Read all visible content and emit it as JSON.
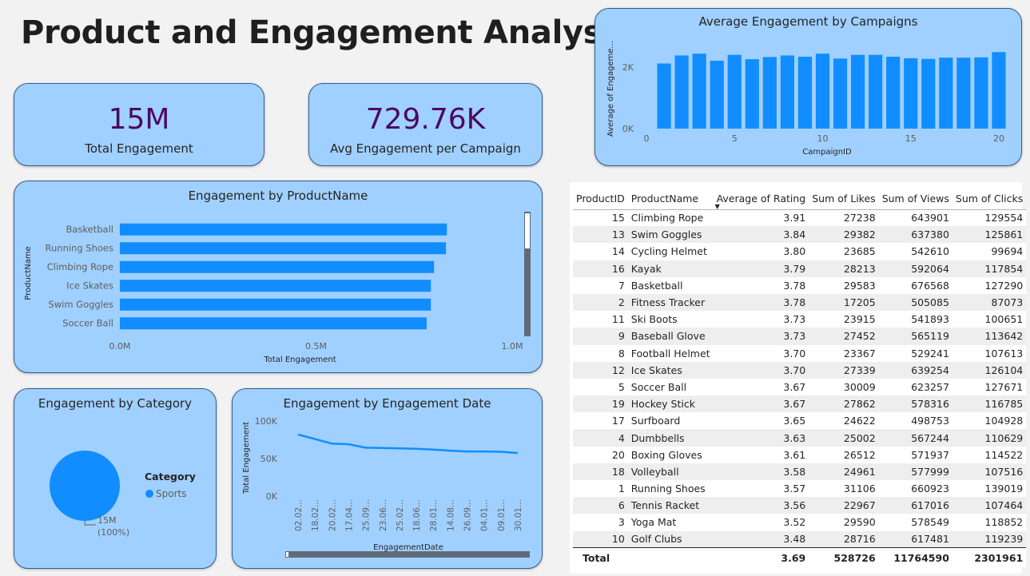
{
  "page": {
    "title": "Product and Engagement Analysis"
  },
  "kpis": [
    {
      "value": "15M",
      "label": "Total Engagement"
    },
    {
      "value": "729.76K",
      "label": "Avg Engagement per Campaign"
    }
  ],
  "colors": {
    "bar": "#118dff",
    "card_bg": "#a0d0ff",
    "kpi_value": "#4b0a5c",
    "scrollbar": "#606b7a"
  },
  "campaign_chart": {
    "title": "Average Engagement by Campaigns",
    "xlabel": "CampaignID",
    "ylabel": "Average of Engageme...",
    "y_ticks": [
      "2K",
      "0K"
    ],
    "x_ticks": [
      "0",
      "5",
      "10",
      "15",
      "20"
    ]
  },
  "product_chart": {
    "title": "Engagement by ProductName",
    "xlabel": "Total Engagement",
    "ylabel": "ProductName",
    "x_ticks": [
      "0.0M",
      "0.5M",
      "1.0M"
    ]
  },
  "category_chart": {
    "title": "Engagement by Category",
    "legend_title": "Category",
    "legend_item": "Sports",
    "slice_label_value": "15M",
    "slice_label_pct": "(100%)"
  },
  "date_chart": {
    "title": "Engagement by Engagement Date",
    "xlabel": "EngagementDate",
    "ylabel": "Total Engagement",
    "y_ticks": [
      "100K",
      "50K",
      "0K"
    ],
    "x_ticks": [
      "02.02...",
      "18.02...",
      "20.02...",
      "17.04...",
      "25.09...",
      "23.06...",
      "25.02...",
      "18.06...",
      "28.01...",
      "14.08...",
      "26.09...",
      "04.01...",
      "09.01...",
      "30.01..."
    ]
  },
  "chart_data": [
    {
      "type": "bar",
      "title": "Average Engagement by Campaigns",
      "xlabel": "CampaignID",
      "ylabel": "Average of Engageme...",
      "x": [
        1,
        2,
        3,
        4,
        5,
        6,
        7,
        8,
        9,
        10,
        11,
        12,
        13,
        14,
        15,
        16,
        17,
        18,
        19,
        20
      ],
      "values": [
        2120,
        2380,
        2440,
        2210,
        2400,
        2260,
        2330,
        2380,
        2340,
        2440,
        2280,
        2400,
        2400,
        2340,
        2290,
        2270,
        2310,
        2310,
        2320,
        2490
      ],
      "ylim": [
        0,
        2600
      ],
      "xlim": [
        0,
        20.5
      ]
    },
    {
      "type": "bar",
      "orientation": "horizontal",
      "title": "Engagement by ProductName",
      "xlabel": "Total Engagement",
      "ylabel": "ProductName",
      "categories": [
        "Basketball",
        "Running Shoes",
        "Climbing Rope",
        "Ice Skates",
        "Swim Goggles",
        "Soccer Ball"
      ],
      "values": [
        833441,
        831048,
        800693,
        792697,
        792623,
        781957
      ],
      "xlim": [
        0,
        1000000
      ]
    },
    {
      "type": "pie",
      "title": "Engagement by Category",
      "categories": [
        "Sports"
      ],
      "values": [
        15000000
      ],
      "labels": [
        "15M (100%)"
      ]
    },
    {
      "type": "line",
      "title": "Engagement by Engagement Date",
      "xlabel": "EngagementDate",
      "ylabel": "Total Engagement",
      "values": [
        82000,
        76000,
        70000,
        69000,
        64500,
        64000,
        63500,
        63000,
        62000,
        60500,
        59500,
        59500,
        59000,
        57500
      ],
      "ylim": [
        0,
        100000
      ]
    }
  ],
  "table": {
    "columns": [
      "ProductID",
      "ProductName",
      "Average of Rating",
      "Sum of Likes",
      "Sum of Views",
      "Sum of Clicks"
    ],
    "rows": [
      [
        "15",
        "Climbing Rope",
        "3.91",
        "27238",
        "643901",
        "129554"
      ],
      [
        "13",
        "Swim Goggles",
        "3.84",
        "29382",
        "637380",
        "125861"
      ],
      [
        "14",
        "Cycling Helmet",
        "3.80",
        "23685",
        "542610",
        "99694"
      ],
      [
        "16",
        "Kayak",
        "3.79",
        "28213",
        "592064",
        "117854"
      ],
      [
        "7",
        "Basketball",
        "3.78",
        "29583",
        "676568",
        "127290"
      ],
      [
        "2",
        "Fitness Tracker",
        "3.78",
        "17205",
        "505085",
        "87073"
      ],
      [
        "11",
        "Ski Boots",
        "3.73",
        "23915",
        "541893",
        "100651"
      ],
      [
        "9",
        "Baseball Glove",
        "3.73",
        "27452",
        "565119",
        "113642"
      ],
      [
        "8",
        "Football Helmet",
        "3.70",
        "23367",
        "529241",
        "107613"
      ],
      [
        "12",
        "Ice Skates",
        "3.70",
        "27339",
        "639254",
        "126104"
      ],
      [
        "5",
        "Soccer Ball",
        "3.67",
        "30009",
        "623257",
        "127671"
      ],
      [
        "19",
        "Hockey Stick",
        "3.67",
        "27862",
        "578316",
        "116785"
      ],
      [
        "17",
        "Surfboard",
        "3.65",
        "24622",
        "498753",
        "104928"
      ],
      [
        "4",
        "Dumbbells",
        "3.63",
        "25002",
        "567244",
        "110629"
      ],
      [
        "20",
        "Boxing Gloves",
        "3.61",
        "26512",
        "571937",
        "114522"
      ],
      [
        "18",
        "Volleyball",
        "3.58",
        "24961",
        "577999",
        "107516"
      ],
      [
        "1",
        "Running Shoes",
        "3.57",
        "31106",
        "660923",
        "139019"
      ],
      [
        "6",
        "Tennis Racket",
        "3.56",
        "22967",
        "617016",
        "107464"
      ],
      [
        "3",
        "Yoga Mat",
        "3.52",
        "29590",
        "578549",
        "118852"
      ],
      [
        "10",
        "Golf Clubs",
        "3.48",
        "28716",
        "617481",
        "119239"
      ]
    ],
    "total": {
      "label": "Total",
      "rating": "3.69",
      "likes": "528726",
      "views": "11764590",
      "clicks": "2301961"
    }
  }
}
